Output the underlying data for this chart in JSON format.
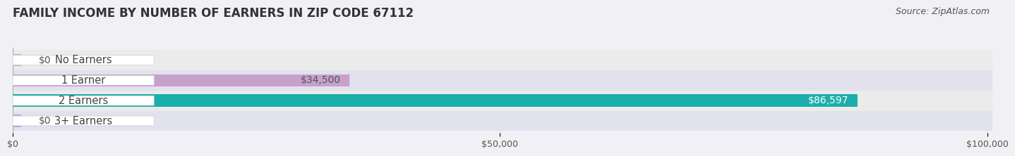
{
  "title": "FAMILY INCOME BY NUMBER OF EARNERS IN ZIP CODE 67112",
  "source": "Source: ZipAtlas.com",
  "categories": [
    "No Earners",
    "1 Earner",
    "2 Earners",
    "3+ Earners"
  ],
  "values": [
    0,
    34500,
    86597,
    0
  ],
  "max_value": 100000,
  "bar_colors": [
    "#a8b8d8",
    "#c8a0cc",
    "#1aafaa",
    "#b0aadd"
  ],
  "label_bg_colors": [
    "#dde4f0",
    "#c8a0cc",
    "#1aafaa",
    "#c0b8e8"
  ],
  "label_colors": [
    "#444444",
    "#444444",
    "#444444",
    "#444444"
  ],
  "value_label_colors": [
    "#555555",
    "#555555",
    "#ffffff",
    "#555555"
  ],
  "value_labels": [
    "$0",
    "$34,500",
    "$86,597",
    "$0"
  ],
  "x_ticks": [
    0,
    50000,
    100000
  ],
  "x_tick_labels": [
    "$0",
    "$50,000",
    "$100,000"
  ],
  "background_color": "#f0f0f5",
  "row_bg_colors": [
    "#ebebeb",
    "#e2e2ee"
  ],
  "title_fontsize": 12,
  "source_fontsize": 9,
  "label_fontsize": 10.5,
  "value_fontsize": 10
}
